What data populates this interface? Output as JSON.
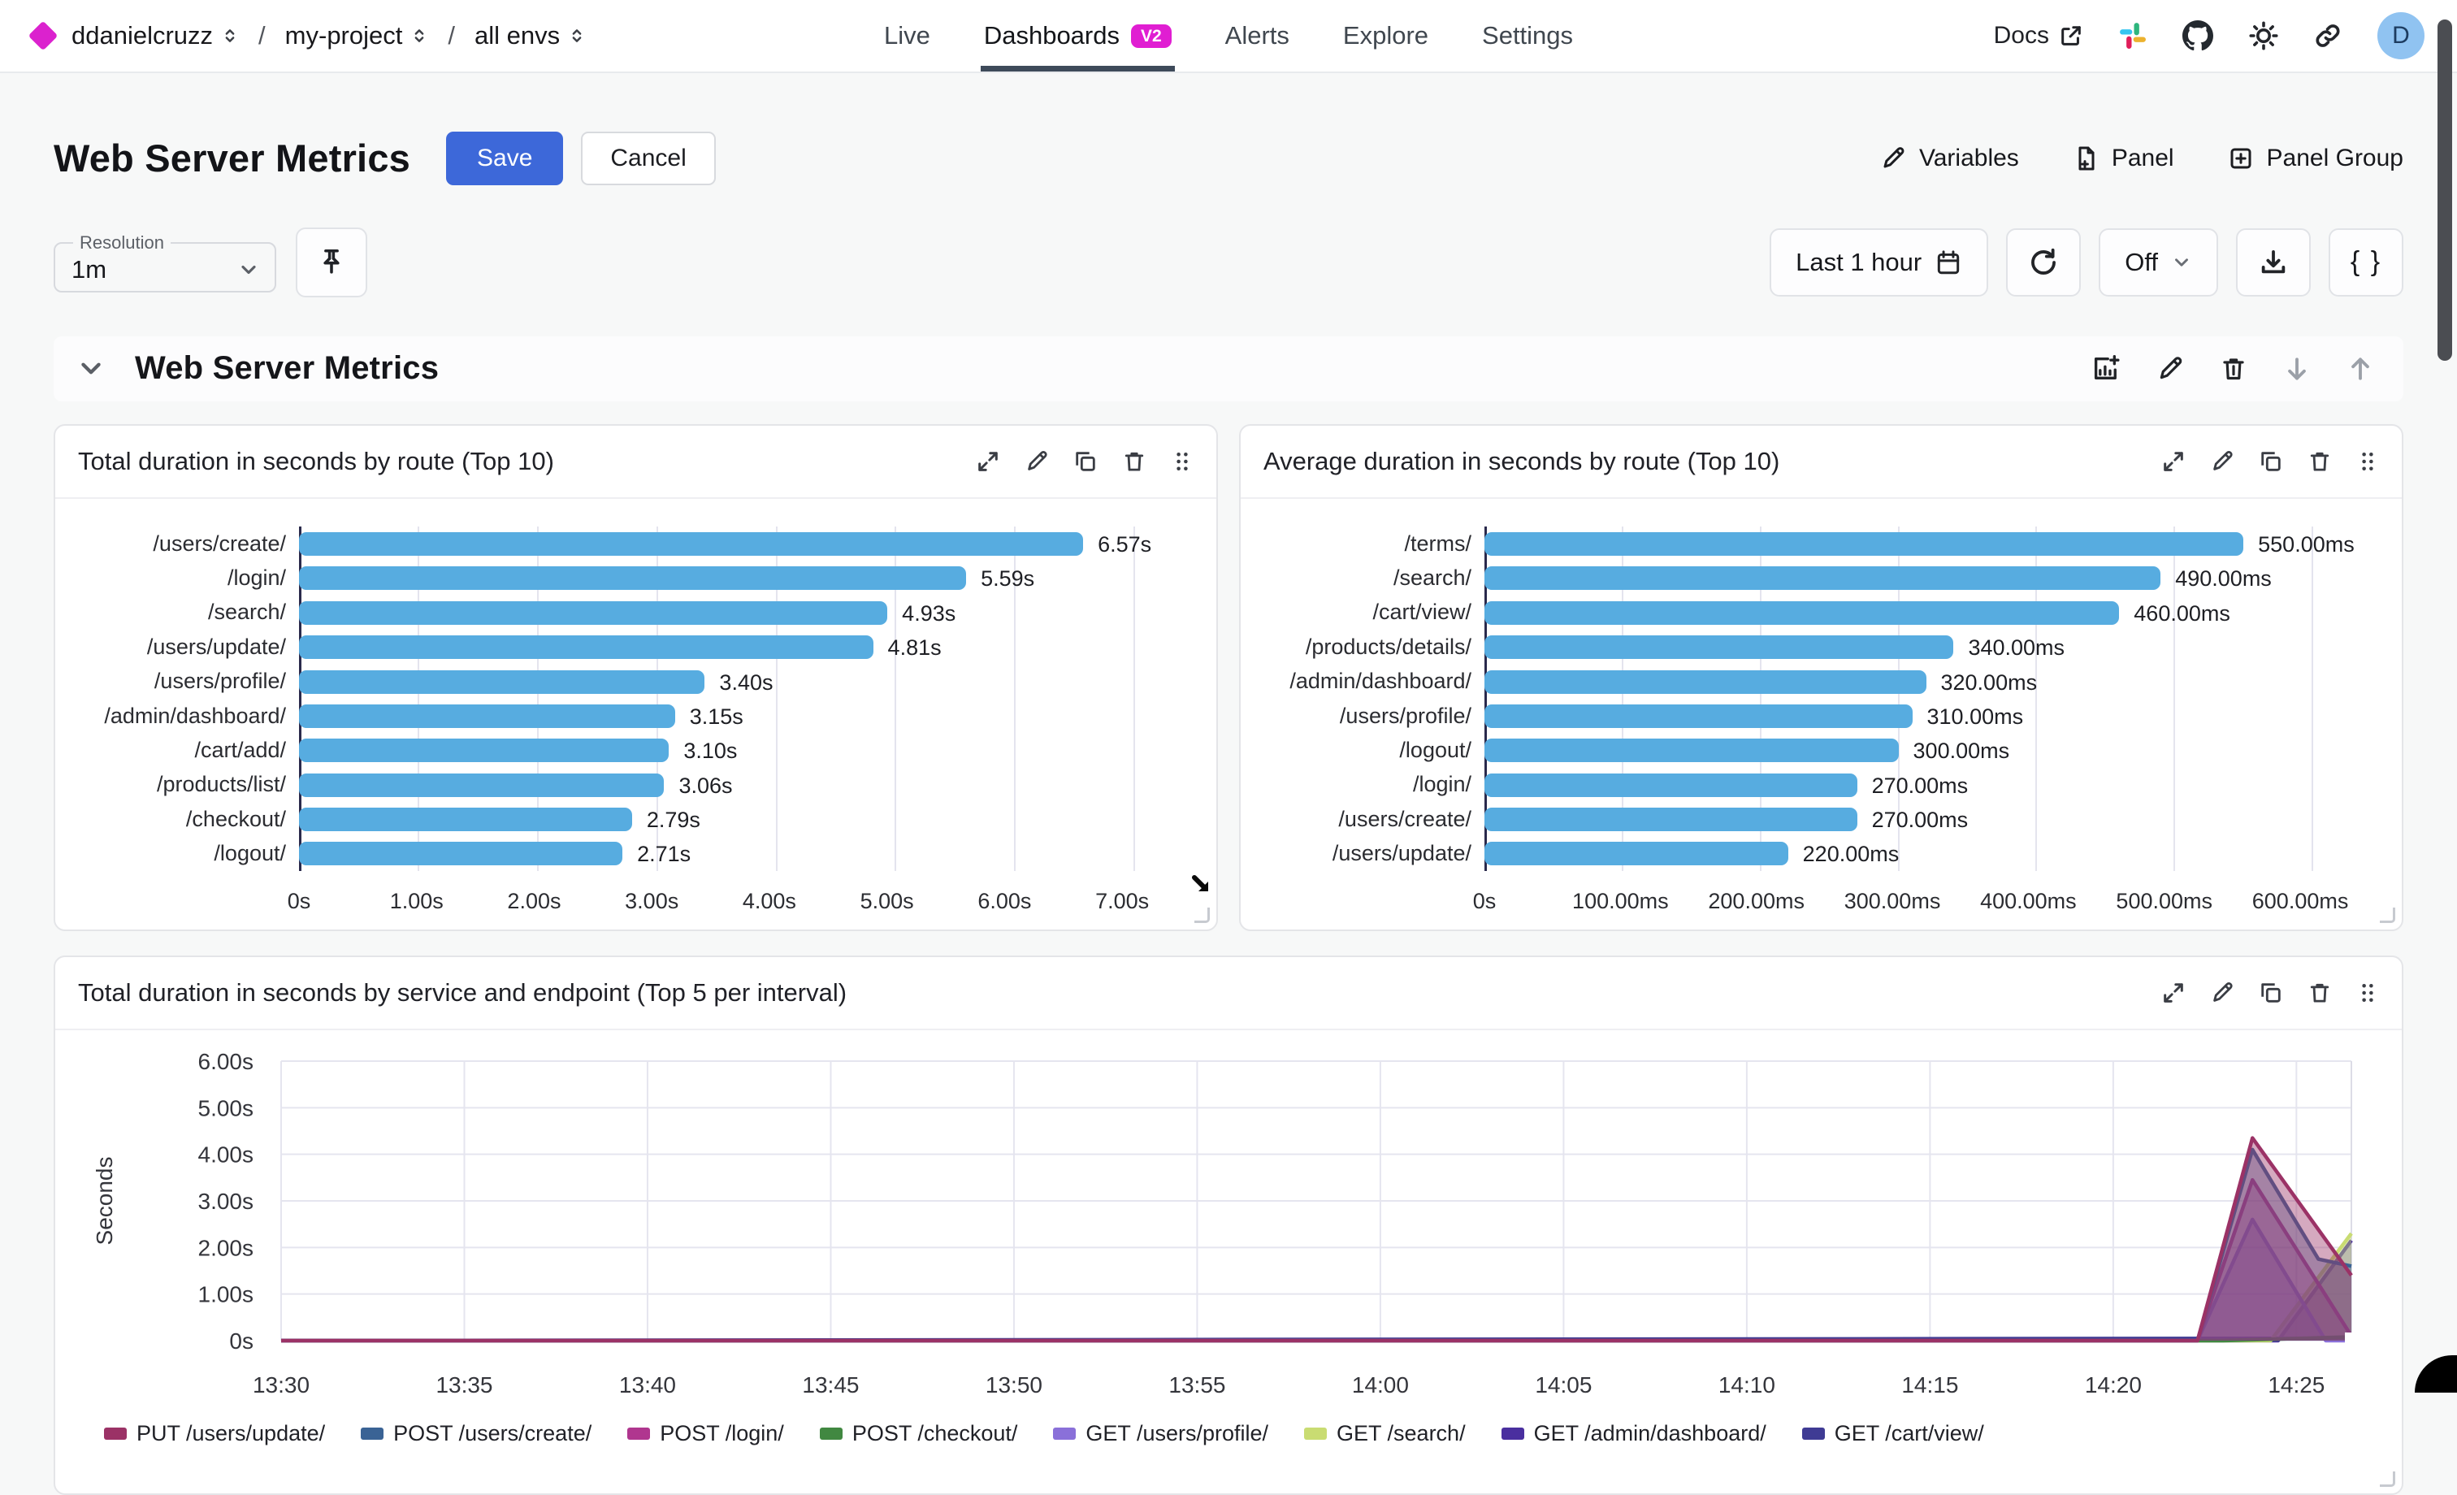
{
  "topbar": {
    "org": "ddanielcruzz",
    "project": "my-project",
    "env": "all envs",
    "breadcrumb_separator": "/",
    "nav": {
      "live": "Live",
      "dashboards": "Dashboards",
      "dashboards_badge": "V2",
      "alerts": "Alerts",
      "explore": "Explore",
      "settings": "Settings"
    },
    "docs_label": "Docs",
    "avatar_initial": "D"
  },
  "header": {
    "title": "Web Server Metrics",
    "save_label": "Save",
    "cancel_label": "Cancel",
    "variables_label": "Variables",
    "panel_label": "Panel",
    "panel_group_label": "Panel Group"
  },
  "controls": {
    "resolution_label": "Resolution",
    "resolution_value": "1m",
    "time_range_label": "Last 1 hour",
    "refresh_off_label": "Off",
    "braces_label": "{ }"
  },
  "section": {
    "title": "Web Server Metrics"
  },
  "icons": [
    "brand-diamond",
    "select-caret",
    "external-link",
    "slack",
    "github",
    "theme-sun",
    "share-link",
    "pencil",
    "file-plus",
    "plus-square",
    "pin",
    "calendar",
    "refresh",
    "chevron-down",
    "download",
    "braces",
    "chart-plus",
    "trash",
    "arrow-down",
    "arrow-up",
    "expand",
    "copy",
    "drag-handle",
    "resize-cursor"
  ],
  "chart_data": [
    {
      "type": "bar",
      "orientation": "horizontal",
      "title": "Total duration in seconds by route (Top 10)",
      "categories": [
        "/users/create/",
        "/login/",
        "/search/",
        "/users/update/",
        "/users/profile/",
        "/admin/dashboard/",
        "/cart/add/",
        "/products/list/",
        "/checkout/",
        "/logout/"
      ],
      "values": [
        6.57,
        5.59,
        4.93,
        4.81,
        3.4,
        3.15,
        3.1,
        3.06,
        2.79,
        2.71
      ],
      "value_labels": [
        "6.57s",
        "5.59s",
        "4.93s",
        "4.81s",
        "3.40s",
        "3.15s",
        "3.10s",
        "3.06s",
        "2.79s",
        "2.71s"
      ],
      "unit": "s",
      "xticks": [
        "0s",
        "1.00s",
        "2.00s",
        "3.00s",
        "4.00s",
        "5.00s",
        "6.00s",
        "7.00s"
      ],
      "xtick_values": [
        0,
        1,
        2,
        3,
        4,
        5,
        6,
        7
      ],
      "xlim": [
        0,
        7.4
      ],
      "bar_color": "#57ACE0",
      "grid": true
    },
    {
      "type": "bar",
      "orientation": "horizontal",
      "title": "Average duration in seconds by route (Top 10)",
      "categories": [
        "/terms/",
        "/search/",
        "/cart/view/",
        "/products/details/",
        "/admin/dashboard/",
        "/users/profile/",
        "/logout/",
        "/login/",
        "/users/create/",
        "/users/update/"
      ],
      "values": [
        550,
        490,
        460,
        340,
        320,
        310,
        300,
        270,
        270,
        220
      ],
      "value_labels": [
        "550.00ms",
        "490.00ms",
        "460.00ms",
        "340.00ms",
        "320.00ms",
        "310.00ms",
        "300.00ms",
        "270.00ms",
        "270.00ms",
        "220.00ms"
      ],
      "unit": "ms",
      "xticks": [
        "0s",
        "100.00ms",
        "200.00ms",
        "300.00ms",
        "400.00ms",
        "500.00ms",
        "600.00ms"
      ],
      "xtick_values": [
        0,
        100,
        200,
        300,
        400,
        500,
        600
      ],
      "xlim": [
        0,
        640
      ],
      "bar_color": "#57ACE0",
      "grid": true
    },
    {
      "type": "area",
      "title": "Total duration in seconds by service and endpoint (Top 5 per interval)",
      "ylabel": "Seconds",
      "yticks": [
        "0s",
        "1.00s",
        "2.00s",
        "3.00s",
        "4.00s",
        "5.00s",
        "6.00s"
      ],
      "ytick_values": [
        0,
        1,
        2,
        3,
        4,
        5,
        6
      ],
      "ylim": [
        0,
        6
      ],
      "xticks": [
        "13:30",
        "13:35",
        "13:40",
        "13:45",
        "13:50",
        "13:55",
        "14:00",
        "14:05",
        "14:10",
        "14:15",
        "14:20",
        "14:25"
      ],
      "xtick_minutes": [
        0,
        5,
        10,
        15,
        20,
        25,
        30,
        35,
        40,
        45,
        50,
        55
      ],
      "x_range_minutes": [
        0,
        56.5
      ],
      "grid": true,
      "legend_position": "bottom",
      "series": [
        {
          "name": "PUT /users/update/",
          "color": "#9B3266",
          "points": [
            [
              0,
              0
            ],
            [
              52.3,
              0
            ],
            [
              53.8,
              4.35
            ],
            [
              56.5,
              1.4
            ]
          ]
        },
        {
          "name": "POST /users/create/",
          "color": "#3A6395",
          "points": [
            [
              0,
              0
            ],
            [
              52.3,
              0
            ],
            [
              53.8,
              4.1
            ],
            [
              55.6,
              1.75
            ],
            [
              56.5,
              1.6
            ]
          ]
        },
        {
          "name": "POST /login/",
          "color": "#B0368F",
          "points": [
            [
              0,
              0
            ],
            [
              52.3,
              0
            ],
            [
              53.8,
              3.45
            ],
            [
              56.5,
              0.1
            ]
          ]
        },
        {
          "name": "POST /checkout/",
          "color": "#418841",
          "points": [
            [
              0,
              0
            ],
            [
              53.0,
              0
            ],
            [
              56.5,
              0.08
            ]
          ]
        },
        {
          "name": "GET /users/profile/",
          "color": "#8A70D9",
          "points": [
            [
              0,
              0
            ],
            [
              52.3,
              0
            ],
            [
              53.8,
              2.6
            ],
            [
              55.8,
              0
            ],
            [
              56.5,
              0
            ]
          ]
        },
        {
          "name": "GET /search/",
          "color": "#C9DC72",
          "points": [
            [
              0,
              0
            ],
            [
              54.3,
              0
            ],
            [
              56.5,
              2.3
            ]
          ]
        },
        {
          "name": "GET /admin/dashboard/",
          "color": "#4A2F9F",
          "points": [
            [
              0,
              0
            ],
            [
              54.5,
              0
            ],
            [
              56.5,
              2.15
            ]
          ]
        },
        {
          "name": "GET /cart/view/",
          "color": "#3F3B94",
          "points": [
            [
              0,
              0
            ],
            [
              56.5,
              0.05
            ]
          ]
        }
      ]
    }
  ]
}
